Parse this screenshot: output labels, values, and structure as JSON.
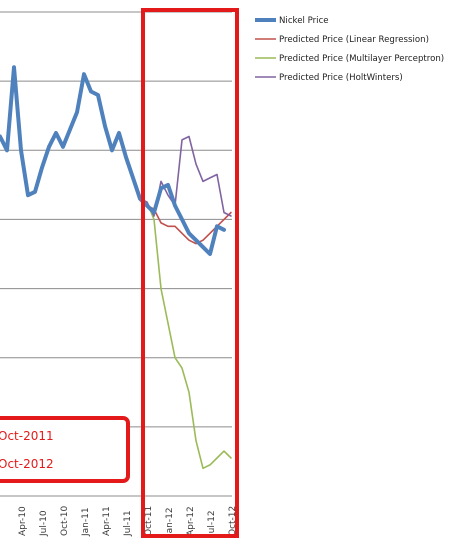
{
  "chart_data": {
    "type": "line",
    "title": "",
    "xlabel": "",
    "ylabel": "",
    "ylim": [
      0,
      7
    ],
    "grid": true,
    "legend_position": "top-right",
    "categories": [
      "Apr-10",
      "Jul-10",
      "Oct-10",
      "Jan-11",
      "Apr-11",
      "Jul-11",
      "Oct-11",
      "Jan-12",
      "Apr-12",
      "Jul-12",
      "Oct-12"
    ],
    "series": [
      {
        "name": "Nickel Price",
        "color": "#4F81BD",
        "points": [
          {
            "x": "Jan-10",
            "y": 5.2
          },
          {
            "x": "Feb-10",
            "y": 5.0
          },
          {
            "x": "Mar-10",
            "y": 6.2
          },
          {
            "x": "Apr-10",
            "y": 5.0
          },
          {
            "x": "May-10",
            "y": 4.35
          },
          {
            "x": "Jun-10",
            "y": 4.4
          },
          {
            "x": "Jul-10",
            "y": 4.75
          },
          {
            "x": "Aug-10",
            "y": 5.05
          },
          {
            "x": "Sep-10",
            "y": 5.25
          },
          {
            "x": "Oct-10",
            "y": 5.05
          },
          {
            "x": "Nov-10",
            "y": 5.3
          },
          {
            "x": "Dec-10",
            "y": 5.55
          },
          {
            "x": "Jan-11",
            "y": 6.1
          },
          {
            "x": "Feb-11",
            "y": 5.85
          },
          {
            "x": "Mar-11",
            "y": 5.8
          },
          {
            "x": "Apr-11",
            "y": 5.35
          },
          {
            "x": "May-11",
            "y": 5.0
          },
          {
            "x": "Jun-11",
            "y": 5.25
          },
          {
            "x": "Jul-11",
            "y": 4.9
          },
          {
            "x": "Aug-11",
            "y": 4.6
          },
          {
            "x": "Sep-11",
            "y": 4.3
          },
          {
            "x": "Oct-11",
            "y": 4.2
          },
          {
            "x": "Nov-11",
            "y": 4.1
          },
          {
            "x": "Dec-11",
            "y": 4.45
          },
          {
            "x": "Jan-12",
            "y": 4.5
          },
          {
            "x": "Feb-12",
            "y": 4.2
          },
          {
            "x": "Mar-12",
            "y": 4.0
          },
          {
            "x": "Apr-12",
            "y": 3.8
          },
          {
            "x": "May-12",
            "y": 3.7
          },
          {
            "x": "Jun-12",
            "y": 3.6
          },
          {
            "x": "Jul-12",
            "y": 3.5
          },
          {
            "x": "Aug-12",
            "y": 3.9
          },
          {
            "x": "Sep-12",
            "y": 3.85
          }
        ]
      },
      {
        "name": "Predicted Price (Linear Regression)",
        "color": "#C0504D",
        "points": [
          {
            "x": "Sep-11",
            "y": 4.3
          },
          {
            "x": "Oct-11",
            "y": 4.2
          },
          {
            "x": "Nov-11",
            "y": 4.15
          },
          {
            "x": "Dec-11",
            "y": 3.95
          },
          {
            "x": "Jan-12",
            "y": 3.9
          },
          {
            "x": "Feb-12",
            "y": 3.9
          },
          {
            "x": "Mar-12",
            "y": 3.8
          },
          {
            "x": "Apr-12",
            "y": 3.7
          },
          {
            "x": "May-12",
            "y": 3.65
          },
          {
            "x": "Jun-12",
            "y": 3.7
          },
          {
            "x": "Jul-12",
            "y": 3.8
          },
          {
            "x": "Aug-12",
            "y": 3.9
          },
          {
            "x": "Sep-12",
            "y": 4.0
          },
          {
            "x": "Oct-12",
            "y": 4.1
          }
        ]
      },
      {
        "name": "Predicted Price (Multilayer Perceptron)",
        "color": "#9BBB59",
        "points": [
          {
            "x": "Sep-11",
            "y": 4.3
          },
          {
            "x": "Oct-11",
            "y": 4.25
          },
          {
            "x": "Nov-11",
            "y": 4.0
          },
          {
            "x": "Dec-11",
            "y": 3.0
          },
          {
            "x": "Jan-12",
            "y": 2.5
          },
          {
            "x": "Feb-12",
            "y": 2.0
          },
          {
            "x": "Mar-12",
            "y": 1.85
          },
          {
            "x": "Apr-12",
            "y": 1.5
          },
          {
            "x": "May-12",
            "y": 0.8
          },
          {
            "x": "Jun-12",
            "y": 0.4
          },
          {
            "x": "Jul-12",
            "y": 0.45
          },
          {
            "x": "Aug-12",
            "y": 0.55
          },
          {
            "x": "Sep-12",
            "y": 0.65
          },
          {
            "x": "Oct-12",
            "y": 0.55
          }
        ]
      },
      {
        "name": "Predicted Price (HoltWinters)",
        "color": "#8064A2",
        "points": [
          {
            "x": "Sep-11",
            "y": 4.3
          },
          {
            "x": "Oct-11",
            "y": 4.25
          },
          {
            "x": "Nov-11",
            "y": 4.05
          },
          {
            "x": "Dec-11",
            "y": 4.55
          },
          {
            "x": "Jan-12",
            "y": 4.35
          },
          {
            "x": "Feb-12",
            "y": 4.2
          },
          {
            "x": "Mar-12",
            "y": 5.15
          },
          {
            "x": "Apr-12",
            "y": 5.2
          },
          {
            "x": "May-12",
            "y": 4.8
          },
          {
            "x": "Jun-12",
            "y": 4.55
          },
          {
            "x": "Jul-12",
            "y": 4.6
          },
          {
            "x": "Aug-12",
            "y": 4.65
          },
          {
            "x": "Sep-12",
            "y": 4.1
          },
          {
            "x": "Oct-12",
            "y": 4.05
          }
        ]
      }
    ],
    "annotations": {
      "callout_lines": [
        "Oct-2011",
        "Oct-2012"
      ],
      "highlight": {
        "from": "Oct-11",
        "to": "Oct-12"
      }
    }
  }
}
